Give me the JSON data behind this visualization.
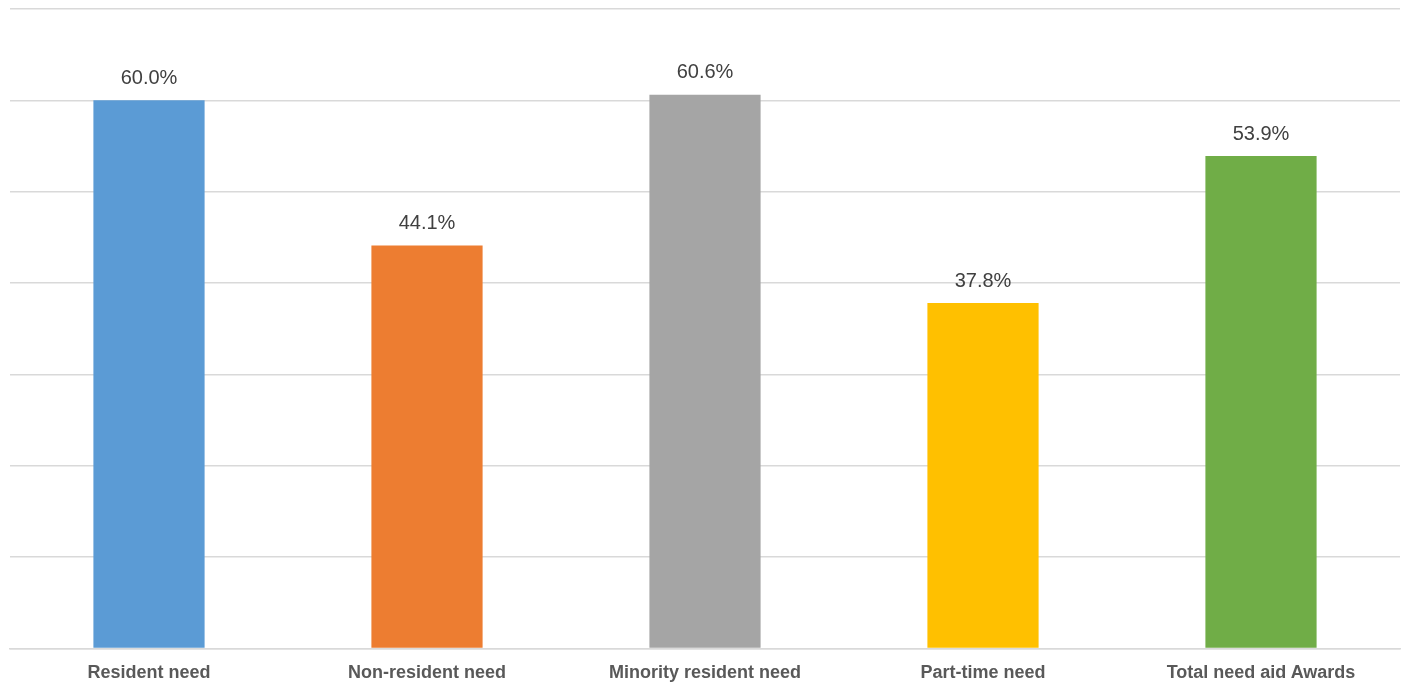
{
  "chart_data": {
    "type": "bar",
    "categories": [
      "Resident need",
      "Non-resident need",
      "Minority resident need",
      "Part-time need",
      "Total need aid Awards"
    ],
    "values": [
      60.0,
      44.1,
      60.6,
      37.8,
      53.9
    ],
    "colors": [
      "#5b9bd5",
      "#ed7d31",
      "#a5a5a5",
      "#ffc000",
      "#70ad47"
    ],
    "value_labels": [
      "60.0%",
      "44.1%",
      "60.6%",
      "37.8%",
      "53.9%"
    ],
    "ylim": [
      0,
      70
    ],
    "yticks": [
      {
        "value": 0,
        "label": null
      },
      {
        "value": 10,
        "label": null
      },
      {
        "value": 20,
        "label": null
      },
      {
        "value": 30,
        "label": null
      },
      {
        "value": 40,
        "label": null
      },
      {
        "value": 50,
        "label": null
      },
      {
        "value": 60,
        "label": null
      },
      {
        "value": 70,
        "label": null
      }
    ],
    "grid": "y",
    "tick_labels": "x",
    "legend": false
  }
}
